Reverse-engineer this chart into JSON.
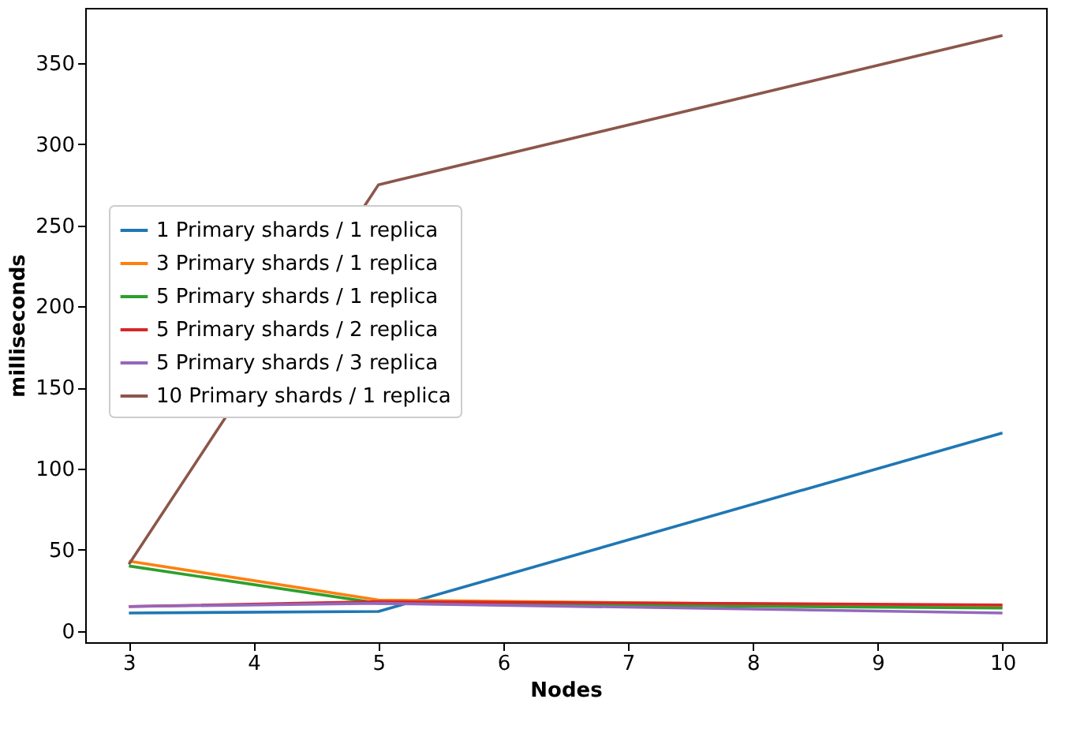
{
  "chart_data": {
    "type": "line",
    "xlabel": "Nodes",
    "ylabel": "milliseconds",
    "x": [
      3,
      5,
      10
    ],
    "xlim": [
      2.65,
      10.35
    ],
    "xticks": [
      3,
      4,
      5,
      6,
      7,
      8,
      9,
      10
    ],
    "ylim": [
      -7,
      384
    ],
    "yticks": [
      0,
      50,
      100,
      150,
      200,
      250,
      300,
      350
    ],
    "legend": "left",
    "grid": false,
    "series": [
      {
        "name": "1 Primary shards / 1 replica",
        "color": "#1f77b4",
        "values": [
          11,
          12,
          122
        ]
      },
      {
        "name": "3 Primary shards / 1 replica",
        "color": "#ff7f0e",
        "values": [
          43,
          19,
          15
        ]
      },
      {
        "name": "5 Primary shards / 1 replica",
        "color": "#2ca02c",
        "values": [
          40,
          17,
          14
        ]
      },
      {
        "name": "5 Primary shards / 2 replica",
        "color": "#d62728",
        "values": [
          15,
          18,
          16
        ]
      },
      {
        "name": "5 Primary shards / 3 replica",
        "color": "#9467bd",
        "values": [
          15,
          17,
          11
        ]
      },
      {
        "name": "10 Primary shards / 1 replica",
        "color": "#8c564b",
        "values": [
          41,
          275,
          367
        ]
      }
    ]
  }
}
